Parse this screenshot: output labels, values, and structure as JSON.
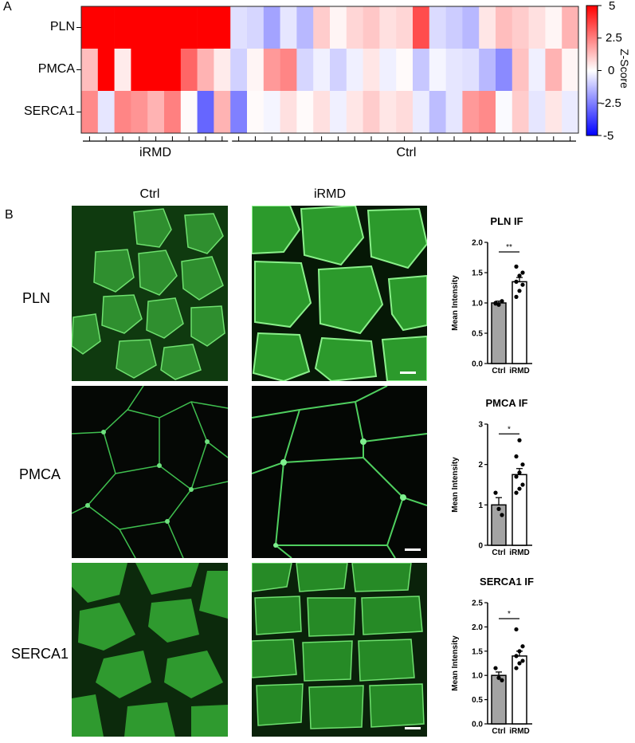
{
  "panels": {
    "a": "A",
    "b": "B"
  },
  "heatmap": {
    "rows": [
      "PLN",
      "PMCA",
      "SERCA1"
    ],
    "groups": [
      {
        "label": "iRMD",
        "count": 9
      },
      {
        "label": "Ctrl",
        "count": 21
      }
    ],
    "zscores": [
      [
        5,
        5,
        5,
        5,
        5,
        5,
        5,
        5,
        5,
        -0.6,
        -0.8,
        -1.8,
        -0.5,
        -1.4,
        1.0,
        0.2,
        0.8,
        1.1,
        0.6,
        0.8,
        3.5,
        -0.7,
        -1.0,
        -1.4,
        0.5,
        1.3,
        1.0,
        0.6,
        0.2,
        1.5
      ],
      [
        1.3,
        5,
        0.4,
        5,
        5,
        5,
        3.0,
        1.5,
        0.4,
        -0.9,
        0.2,
        2.0,
        2.4,
        -0.8,
        -0.3,
        -0.9,
        -0.3,
        0.5,
        -0.3,
        0.1,
        -1.1,
        -0.2,
        -0.5,
        -0.6,
        -1.4,
        -2.3,
        1.2,
        -0.3,
        1.5,
        0.2
      ],
      [
        2.3,
        -0.5,
        2.4,
        2.1,
        1.5,
        2.5,
        0.1,
        -3.0,
        1.5,
        -2.5,
        0.1,
        -0.2,
        0.6,
        0.1,
        0.6,
        -0.3,
        0.5,
        1.0,
        0.5,
        0.7,
        -0.4,
        -1.3,
        -0.5,
        2.0,
        2.3,
        -0.1,
        1.0,
        -0.5,
        0.5,
        -0.4
      ]
    ],
    "colorbar": {
      "title": "Z-Score",
      "ticks": [
        "5",
        "2.5",
        "0",
        "-2.5",
        "-5"
      ],
      "min": -5,
      "max": 5,
      "low_color": "#0000ff",
      "mid_color": "#ffffff",
      "high_color": "#ff0000"
    }
  },
  "micrographs": {
    "columns": [
      "Ctrl",
      "iRMD"
    ],
    "rows": [
      "PLN",
      "PMCA",
      "SERCA1"
    ],
    "stain_color": "#2bd02b"
  },
  "chart_data": [
    {
      "type": "bar",
      "title": "PLN IF",
      "categories": [
        "Ctrl",
        "iRMD"
      ],
      "values": [
        1.0,
        1.35
      ],
      "errors": [
        0.03,
        0.07
      ],
      "ylabel": "Mean Intensity",
      "ylim": [
        0,
        2.0
      ],
      "yticks": [
        "0.0",
        "0.5",
        "1.0",
        "1.5",
        "2.0"
      ],
      "points": [
        [
          1.0,
          0.97,
          1.03,
          0.99
        ],
        [
          1.1,
          1.2,
          1.3,
          1.35,
          1.45,
          1.5,
          1.6
        ]
      ],
      "significance": "**",
      "bar_colors": [
        "#a3a3a3",
        "#ffffff"
      ]
    },
    {
      "type": "bar",
      "title": "PMCA IF",
      "categories": [
        "Ctrl",
        "iRMD"
      ],
      "values": [
        1.0,
        1.75
      ],
      "errors": [
        0.18,
        0.15
      ],
      "ylabel": "Mean Intensity",
      "ylim": [
        0,
        3
      ],
      "yticks": [
        "0",
        "1",
        "2",
        "3"
      ],
      "points": [
        [
          1.3,
          0.9,
          0.75
        ],
        [
          1.3,
          1.4,
          1.5,
          1.7,
          1.8,
          2.0,
          2.2,
          2.6
        ]
      ],
      "significance": "*",
      "bar_colors": [
        "#a3a3a3",
        "#ffffff"
      ]
    },
    {
      "type": "bar",
      "title": "SERCA1 IF",
      "categories": [
        "Ctrl",
        "iRMD"
      ],
      "values": [
        1.0,
        1.4
      ],
      "errors": [
        0.07,
        0.1
      ],
      "ylabel": "Mean Intensity",
      "ylim": [
        0,
        2.5
      ],
      "yticks": [
        "0.0",
        "0.5",
        "1.0",
        "1.5",
        "2.0",
        "2.5"
      ],
      "points": [
        [
          1.15,
          0.95,
          0.9
        ],
        [
          1.15,
          1.25,
          1.3,
          1.4,
          1.5,
          1.6,
          1.95
        ]
      ],
      "significance": "*",
      "bar_colors": [
        "#a3a3a3",
        "#ffffff"
      ]
    }
  ]
}
